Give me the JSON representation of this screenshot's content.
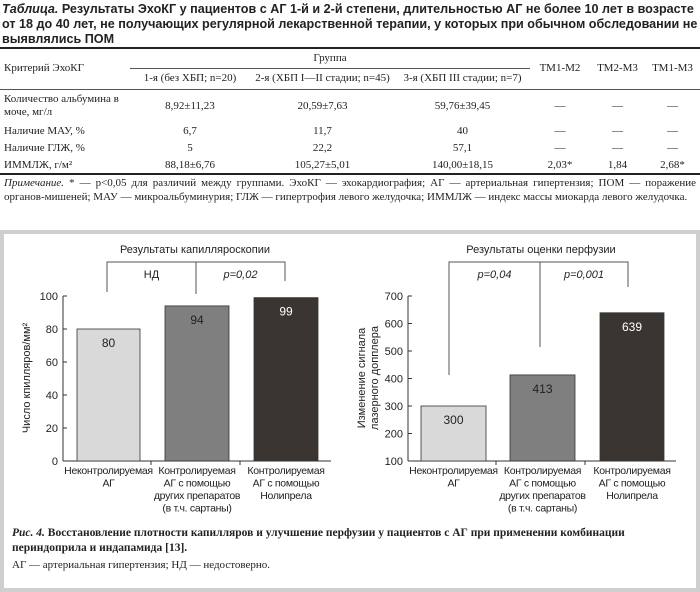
{
  "table": {
    "title_label": "Таблица.",
    "title": "Результаты ЭхоКГ у пациентов с АГ 1-й и 2-й степени, длительностью АГ не более 10 лет в возрасте от 18 до 40 лет, не получающих регулярной лекарственной терапии, у которых при обычном обследовании не выявлялись ПОМ",
    "header": {
      "criterion": "Критерий ЭхоКГ",
      "group": "Группа",
      "g1": "1-я (без ХБП; n=20)",
      "g2": "2-я (ХБП I—II стадии; n=45)",
      "g3": "3-я (ХБП III стадии; n=7)",
      "tm12": "ТМ1-М2",
      "tm23": "ТМ2-М3",
      "tm13": "ТМ1-М3"
    },
    "rows": [
      {
        "criterion": "Количество альбумина в моче, мг/л",
        "g1": "8,92±11,23",
        "g2": "20,59±7,63",
        "g3": "59,76±39,45",
        "tm12": "—",
        "tm23": "—",
        "tm13": "—"
      },
      {
        "criterion": "Наличие МАУ, %",
        "g1": "6,7",
        "g2": "11,7",
        "g3": "40",
        "tm12": "—",
        "tm23": "—",
        "tm13": "—"
      },
      {
        "criterion": "Наличие ГЛЖ, %",
        "g1": "5",
        "g2": "22,2",
        "g3": "57,1",
        "tm12": "—",
        "tm23": "—",
        "tm13": "—"
      },
      {
        "criterion": "ИММЛЖ, г/м²",
        "g1": "88,18±6,76",
        "g2": "105,27±5,01",
        "g3": "140,00±18,15",
        "tm12": "2,03*",
        "tm23": "1,84",
        "tm13": "2,68*"
      }
    ],
    "note_label": "Примечание.",
    "note": "* — p<0,05 для различий между группами. ЭхоКГ — эхокардиография; АГ — артериальная гипертензия; ПОМ — поражение органов-мишеней; МАУ — микроальбуминурия; ГЛЖ — гипертрофия левого желудочка; ИММЛЖ — индекс массы миокарда левого желудочка."
  },
  "chart_data": [
    {
      "type": "bar",
      "title": "Результаты капилляроскопии",
      "ylabel": "Число кпилляров/мм²",
      "ylim": [
        0,
        100
      ],
      "yticks": [
        0,
        20,
        40,
        60,
        80,
        100
      ],
      "categories": [
        [
          "Неконтролируемая",
          "АГ"
        ],
        [
          "Контролируемая",
          "АГ с помощью",
          "других препаратов",
          "(в т.ч. сартаны)"
        ],
        [
          "Контролируемая",
          "АГ с помощью",
          "Нолипрела"
        ]
      ],
      "values": [
        80,
        94,
        99
      ],
      "colors": [
        "#d9d9d9",
        "#7f7f7f",
        "#3a3530"
      ],
      "label_colors": [
        "#222",
        "#222",
        "#fff"
      ],
      "comparisons": [
        {
          "label": "НД"
        },
        {
          "label": "p=0,02"
        }
      ]
    },
    {
      "type": "bar",
      "title": "Результаты оценки перфузии",
      "ylabel": [
        "Изменение сигнала",
        "лазерного допплера"
      ],
      "ylim": [
        100,
        700
      ],
      "yticks": [
        100,
        200,
        300,
        400,
        500,
        600,
        700
      ],
      "categories": [
        [
          "Неконтролируемая",
          "АГ"
        ],
        [
          "Контролируемая",
          "АГ с помощью",
          "других препаратов",
          "(в т.ч. сартаны)"
        ],
        [
          "Контролируемая",
          "АГ с помощью",
          "Нолипрела"
        ]
      ],
      "values": [
        300,
        413,
        639
      ],
      "colors": [
        "#d9d9d9",
        "#7f7f7f",
        "#3a3530"
      ],
      "label_colors": [
        "#222",
        "#222",
        "#fff"
      ],
      "comparisons": [
        {
          "label": "p=0,04"
        },
        {
          "label": "p=0,001"
        }
      ]
    }
  ],
  "figure": {
    "label": "Рис. 4.",
    "caption": "Восстановление плотности капилляров и улучшение перфузии у пациентов с АГ при применении комбинации периндоприла и индапамида [13].",
    "abbr": "АГ — артериальная гипертензия; НД — недостоверно."
  }
}
